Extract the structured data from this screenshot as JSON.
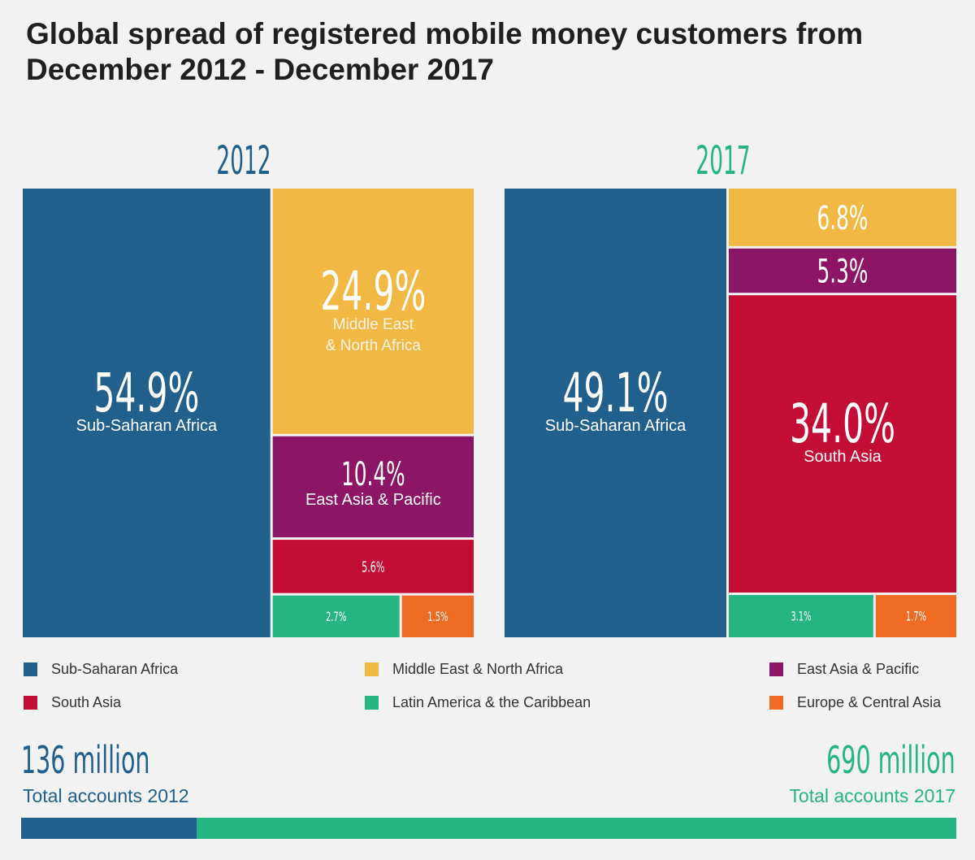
{
  "title": "Global spread of registered mobile money customers from December 2012 - December 2017",
  "colors": {
    "ssa": "#215f8c",
    "mena": "#f1b944",
    "eap": "#8c1566",
    "sa": "#c30d35",
    "lac": "#26b482",
    "eca": "#ef6b24",
    "year2012": "#215f8c",
    "year2017": "#26b482"
  },
  "chart_data": {
    "type": "treemap",
    "title": "Global spread of registered mobile money customers from December 2012 - December 2017",
    "series": [
      {
        "name": "2012",
        "values": [
          {
            "region": "Sub-Saharan Africa",
            "pct": 54.9,
            "label": "54.9%",
            "sub": "Sub-Saharan Africa"
          },
          {
            "region": "Middle East & North Africa",
            "pct": 24.9,
            "label": "24.9%",
            "sub": "Middle East & North Africa"
          },
          {
            "region": "East Asia & Pacific",
            "pct": 10.4,
            "label": "10.4%",
            "sub": "East Asia & Pacific"
          },
          {
            "region": "South Asia",
            "pct": 5.6,
            "label": "5.6%",
            "sub": ""
          },
          {
            "region": "Latin America & the Caribbean",
            "pct": 2.7,
            "label": "2.7%",
            "sub": ""
          },
          {
            "region": "Europe & Central Asia",
            "pct": 1.5,
            "label": "1.5%",
            "sub": ""
          }
        ]
      },
      {
        "name": "2017",
        "values": [
          {
            "region": "Sub-Saharan Africa",
            "pct": 49.1,
            "label": "49.1%",
            "sub": "Sub-Saharan Africa"
          },
          {
            "region": "Middle East & North Africa",
            "pct": 6.8,
            "label": "6.8%",
            "sub": ""
          },
          {
            "region": "East Asia & Pacific",
            "pct": 5.3,
            "label": "5.3%",
            "sub": ""
          },
          {
            "region": "South Asia",
            "pct": 34.0,
            "label": "34.0%",
            "sub": "South Asia"
          },
          {
            "region": "Latin America & the Caribbean",
            "pct": 3.1,
            "label": "3.1%",
            "sub": ""
          },
          {
            "region": "Europe & Central Asia",
            "pct": 1.7,
            "label": "1.7%",
            "sub": ""
          }
        ]
      }
    ],
    "totals": [
      {
        "year": "2012",
        "value_millions": 136,
        "label": "136 million",
        "caption": "Total accounts 2012"
      },
      {
        "year": "2017",
        "value_millions": 690,
        "label": "690 million",
        "caption": "Total accounts 2017"
      }
    ]
  },
  "legend": [
    {
      "label": "Sub-Saharan Africa",
      "color": "#215f8c"
    },
    {
      "label": "Middle East & North Africa",
      "color": "#f1b944"
    },
    {
      "label": "East Asia & Pacific",
      "color": "#8c1566"
    },
    {
      "label": "South Asia",
      "color": "#c30d35"
    },
    {
      "label": "Latin America & the Caribbean",
      "color": "#26b482"
    },
    {
      "label": "Europe & Central Asia",
      "color": "#ef6b24"
    }
  ]
}
